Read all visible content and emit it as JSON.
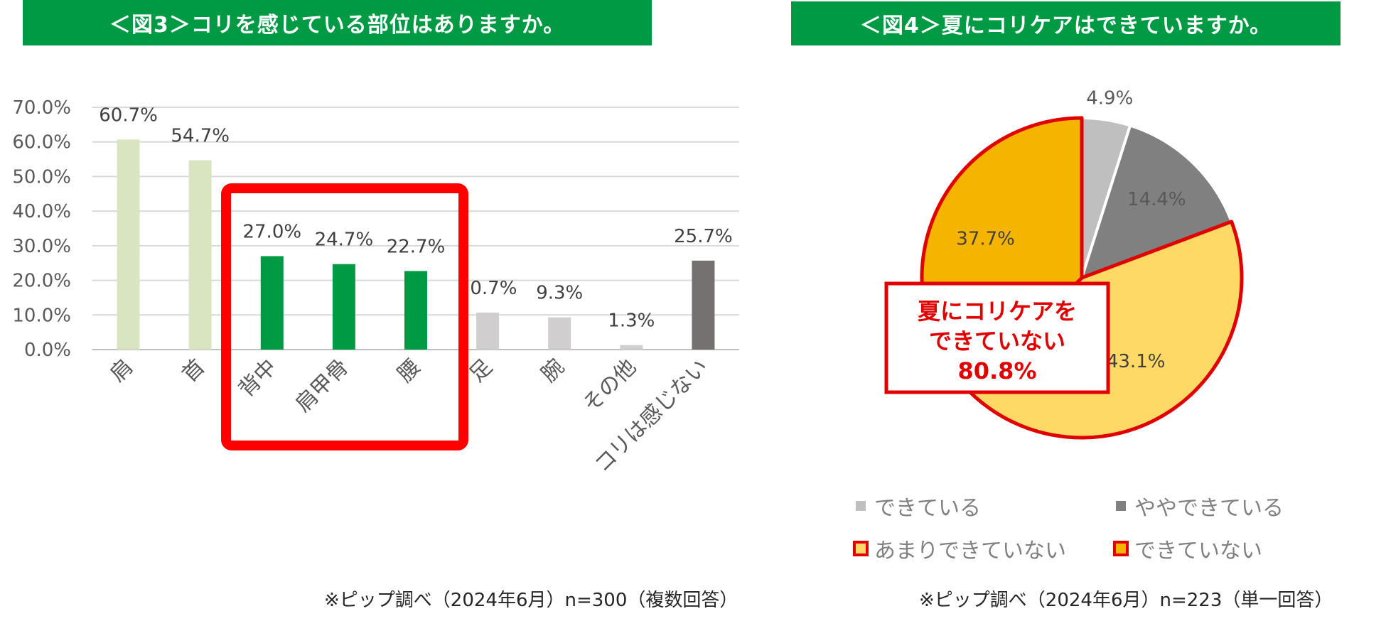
{
  "colors": {
    "banner": "#009a44",
    "highlight_border": "#ff0000",
    "bar_light_green": "#d9e5c0",
    "bar_green": "#009a44",
    "bar_light_gray": "#d0cece",
    "bar_dark_gray": "#767171",
    "pie_dekiteiru": "#bfbfbf",
    "pie_yaya": "#808080",
    "pie_amari": "#ffd966",
    "pie_dekiteinai": "#f5b400",
    "callout_text": "#e00000"
  },
  "fig3": {
    "banner": "＜図3＞コリを感じている部位はありますか。",
    "note": "※ピップ調べ（2024年6月）n=300（複数回答）"
  },
  "fig4": {
    "banner": "＜図4＞夏にコリケアはできていますか。",
    "note": "※ピップ調べ（2024年6月）n=223（単一回答）",
    "callout": [
      "夏にコリケアを",
      "できていない",
      "80.8%"
    ]
  },
  "chart_data": [
    {
      "type": "bar",
      "categories": [
        "肩",
        "首",
        "背中",
        "肩甲骨",
        "腰",
        "足",
        "腕",
        "その他",
        "コリは感じない"
      ],
      "values": [
        60.7,
        54.7,
        27.0,
        24.7,
        22.7,
        10.7,
        9.3,
        1.3,
        25.7
      ],
      "data_labels": [
        "60.7%",
        "54.7%",
        "27.0%",
        "24.7%",
        "22.7%",
        "10.7%",
        "9.3%",
        "1.3%",
        "25.7%"
      ],
      "yticks": [
        "0.0%",
        "10.0%",
        "20.0%",
        "30.0%",
        "40.0%",
        "50.0%",
        "60.0%",
        "70.0%"
      ],
      "ylim": [
        0,
        70
      ],
      "grid": true,
      "highlighted_categories": [
        "背中",
        "肩甲骨",
        "腰"
      ],
      "bar_colors": [
        "#d9e5c0",
        "#d9e5c0",
        "#009a44",
        "#009a44",
        "#009a44",
        "#d0cece",
        "#d0cece",
        "#d0cece",
        "#767171"
      ]
    },
    {
      "type": "pie",
      "labels": [
        "できている",
        "ややできている",
        "あまりできていない",
        "できていない"
      ],
      "values": [
        4.9,
        14.4,
        43.1,
        37.7
      ],
      "data_labels": [
        "4.9%",
        "14.4%",
        "43.1%",
        "37.7%"
      ],
      "colors": [
        "#bfbfbf",
        "#808080",
        "#ffd966",
        "#f5b400"
      ],
      "legend_position": "bottom"
    }
  ]
}
